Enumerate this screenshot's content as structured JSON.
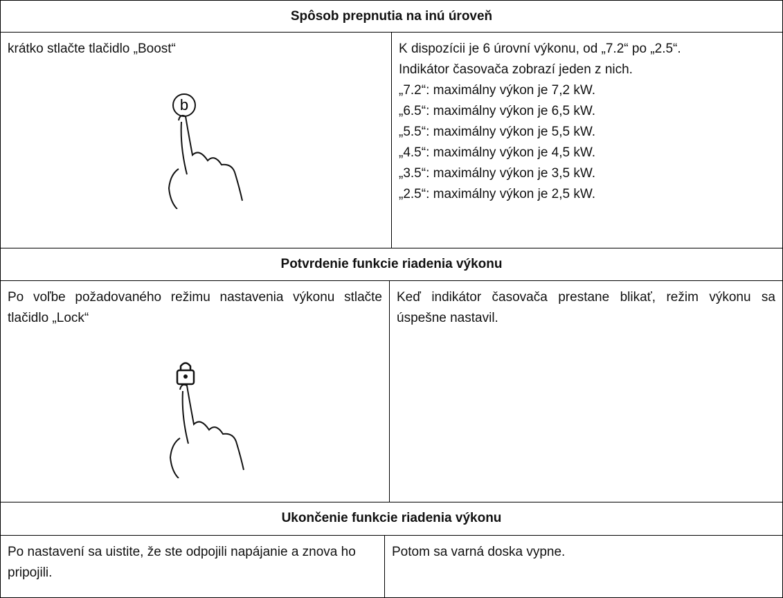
{
  "sections": [
    {
      "heading": "Spôsob prepnutia na inú úroveň",
      "left": "krátko stlačte tlačidlo „Boost“",
      "icon_text": "b",
      "right": [
        "K dispozícii je 6 úrovní výkonu, od „7.2“ po „2.5“.",
        "Indikátor časovača zobrazí jeden z nich.",
        "„7.2“: maximálny výkon je 7,2 kW.",
        "„6.5“: maximálny výkon je 6,5 kW.",
        "„5.5“: maximálny výkon je 5,5 kW.",
        "„4.5“: maximálny výkon je 4,5 kW.",
        "„3.5“: maximálny výkon je 3,5 kW.",
        "„2.5“: maximálny výkon je 2,5 kW."
      ]
    },
    {
      "heading": "Potvrdenie funkcie riadenia výkonu",
      "left": "Po voľbe požadovaného režimu nastavenia výkonu stlačte tlačidlo „Lock“",
      "right": "Keď indikátor časovača prestane blikať, režim výkonu sa úspešne nastavil."
    },
    {
      "heading": "Ukončenie funkcie riadenia výkonu",
      "left": "Po nastavení sa uistite, že ste odpojili napájanie a znova ho pripojili.",
      "right": "Potom sa varná doska vypne."
    }
  ]
}
